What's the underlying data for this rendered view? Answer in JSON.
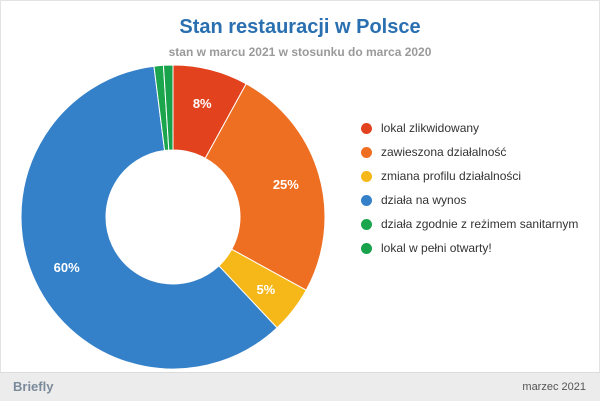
{
  "chart_data": {
    "type": "pie",
    "title": "Stan restauracji w Polsce",
    "subtitle": "stan w marcu 2021 w stosunku do marca 2020",
    "categories": [
      "lokal zlikwidowany",
      "zawieszona działalność",
      "zmiana profilu działalności",
      "działa na wynos",
      "działa zgodnie z reżimem sanitarnym",
      "lokal w pełni otwarty!"
    ],
    "values": [
      8,
      25,
      5,
      60,
      1,
      1
    ],
    "data_labels": [
      "8%",
      "25%",
      "5%",
      "60%",
      "",
      ""
    ],
    "colors": [
      "#e2431e",
      "#ee6e22",
      "#f6b818",
      "#3581c9",
      "#1ba64e",
      "#17a24b"
    ],
    "donut": true,
    "legend_position": "right",
    "start_angle_deg": 0
  },
  "footer": {
    "brand": "Briefly",
    "date": "marzec 2021"
  }
}
